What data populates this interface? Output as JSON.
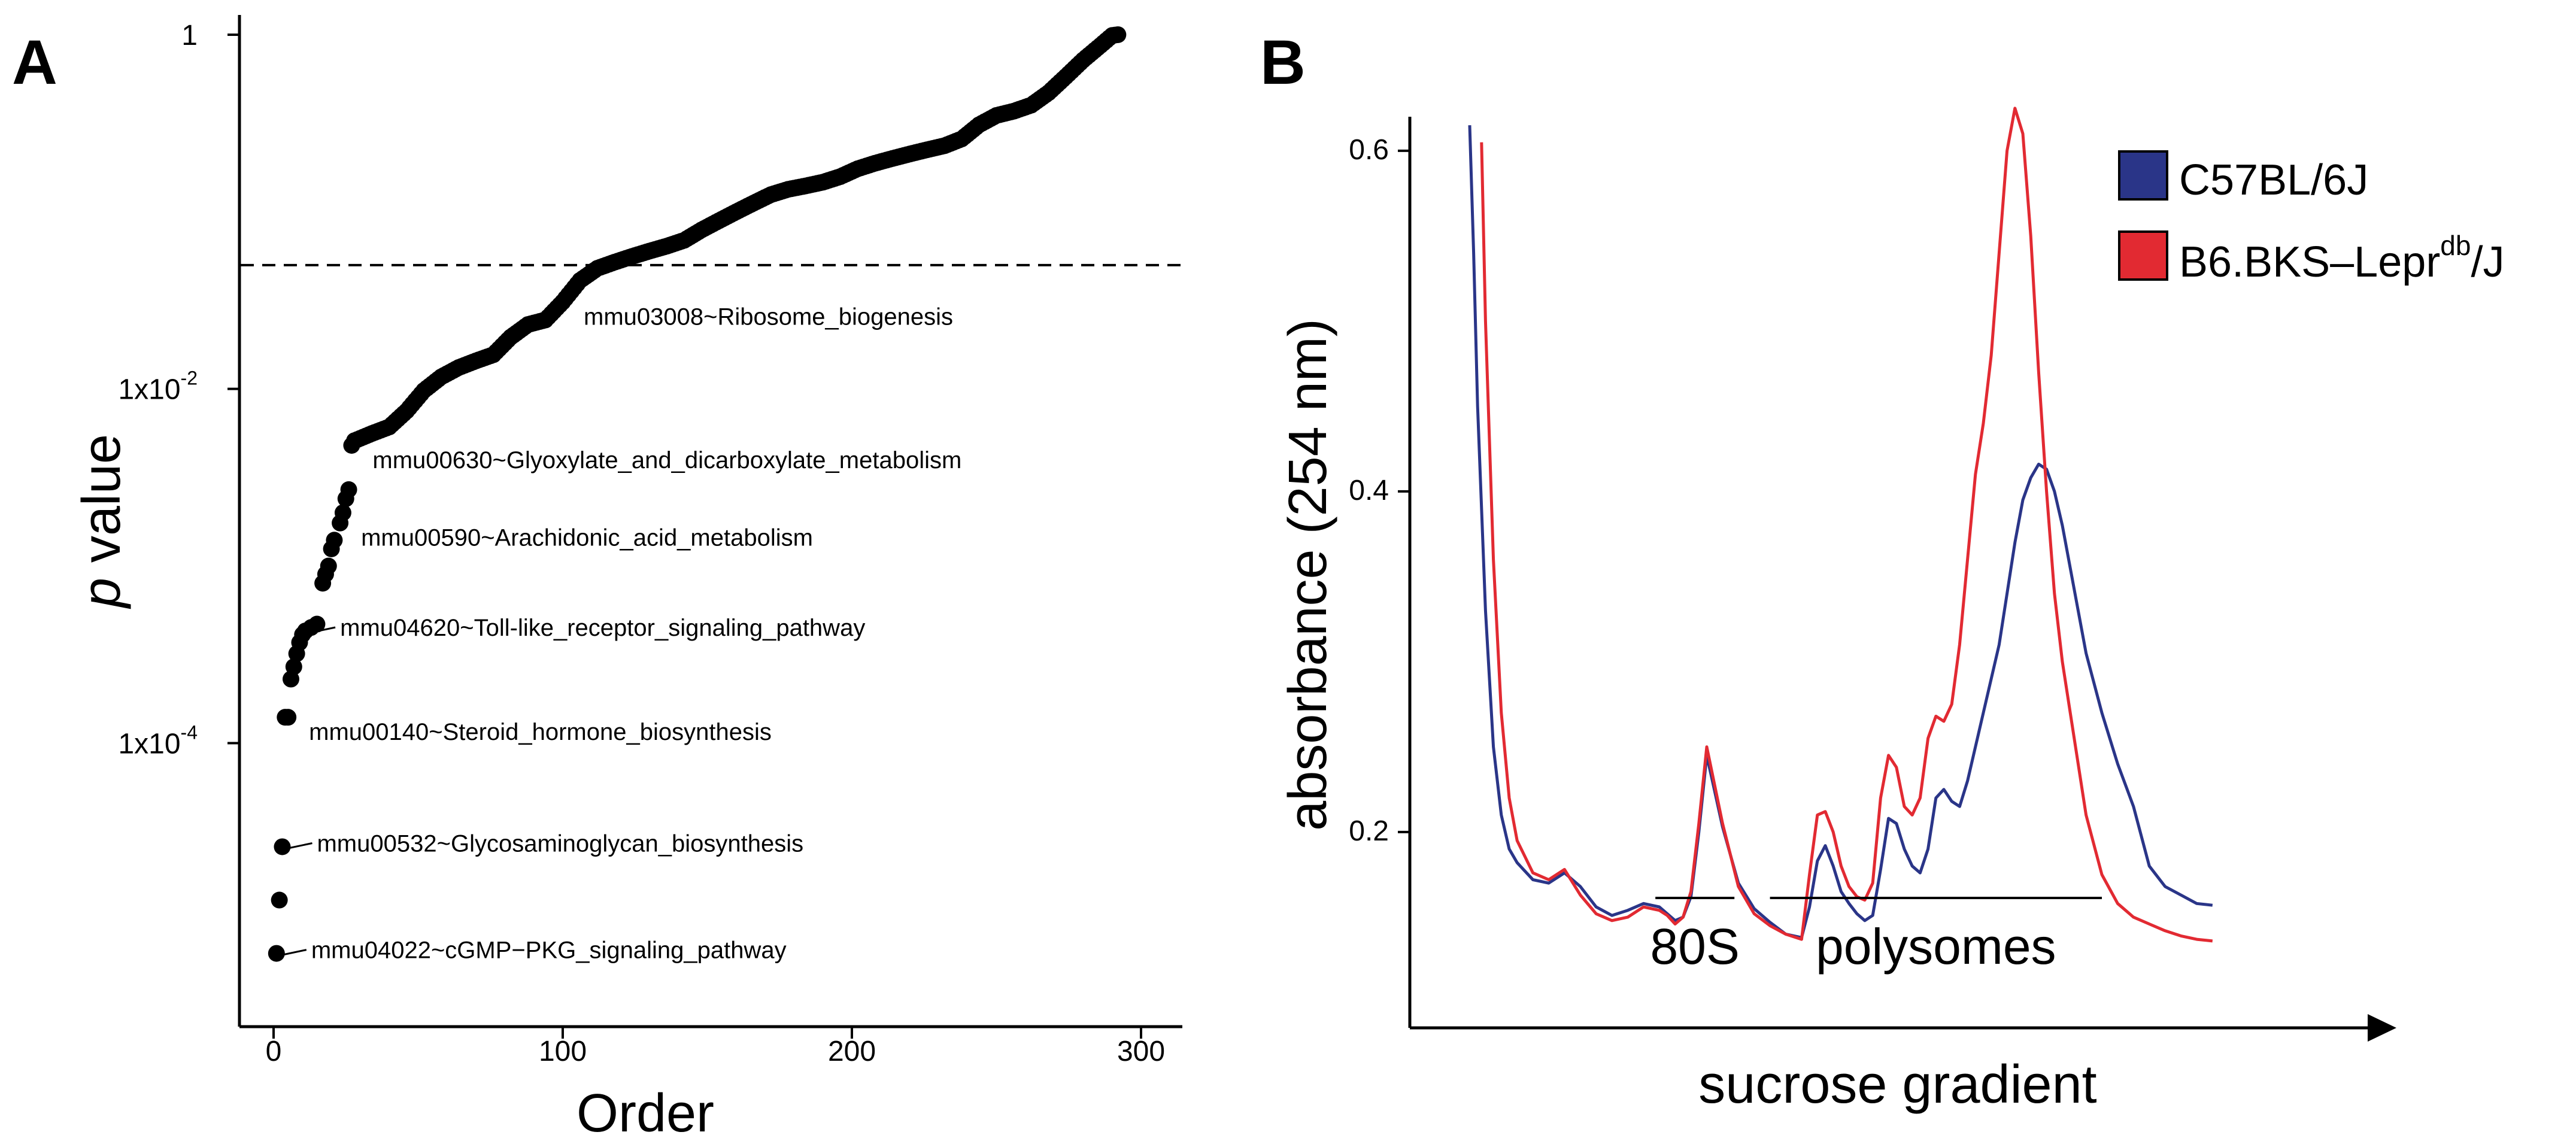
{
  "chart_data": [
    {
      "panel": "A",
      "type": "scatter",
      "xlabel": "Order",
      "ylabel_italic": "p",
      "ylabel_rest": " value",
      "y_scale": "log",
      "xlim": [
        -8,
        300
      ],
      "ylim": [
        4e-06,
        1.15
      ],
      "x_ticks": [
        0,
        100,
        200,
        300
      ],
      "y_ticks": [
        {
          "value": 1,
          "base": "1",
          "exp": ""
        },
        {
          "value": 0.01,
          "base": "1x10",
          "exp": "-2"
        },
        {
          "value": 0.0001,
          "base": "1x10",
          "exp": "-4"
        }
      ],
      "threshold": 0.05,
      "threshold_style": "dashed",
      "points": [
        [
          1,
          6.5e-06
        ],
        [
          2,
          1.3e-05
        ],
        [
          3,
          2.6e-05
        ],
        [
          4,
          0.00014
        ],
        [
          5,
          0.00014
        ],
        [
          6,
          0.00023
        ],
        [
          7,
          0.00027
        ],
        [
          8,
          0.00032
        ],
        [
          9,
          0.00037
        ],
        [
          10,
          0.00041
        ],
        [
          11,
          0.00043
        ],
        [
          13,
          0.00045
        ],
        [
          15,
          0.00047
        ],
        [
          17,
          0.0008
        ],
        [
          18,
          0.0009
        ],
        [
          19,
          0.001
        ],
        [
          20,
          0.00125
        ],
        [
          21,
          0.0014
        ],
        [
          23,
          0.00175
        ],
        [
          24,
          0.002
        ],
        [
          25,
          0.0024
        ],
        [
          26,
          0.0027
        ],
        [
          27,
          0.0048
        ],
        [
          28,
          0.0051
        ]
      ],
      "curve": [
        [
          28,
          0.0051
        ],
        [
          34,
          0.0056
        ],
        [
          40,
          0.0061
        ],
        [
          46,
          0.0075
        ],
        [
          52,
          0.0098
        ],
        [
          58,
          0.0117
        ],
        [
          64,
          0.0132
        ],
        [
          70,
          0.0144
        ],
        [
          76,
          0.0156
        ],
        [
          82,
          0.0196
        ],
        [
          88,
          0.0231
        ],
        [
          94,
          0.0245
        ],
        [
          100,
          0.031
        ],
        [
          106,
          0.041
        ],
        [
          112,
          0.048
        ],
        [
          118,
          0.052
        ],
        [
          124,
          0.056
        ],
        [
          130,
          0.06
        ],
        [
          136,
          0.064
        ],
        [
          142,
          0.069
        ],
        [
          148,
          0.079
        ],
        [
          154,
          0.089
        ],
        [
          160,
          0.1
        ],
        [
          166,
          0.112
        ],
        [
          172,
          0.125
        ],
        [
          178,
          0.134
        ],
        [
          184,
          0.14
        ],
        [
          190,
          0.147
        ],
        [
          196,
          0.158
        ],
        [
          202,
          0.175
        ],
        [
          208,
          0.188
        ],
        [
          214,
          0.2
        ],
        [
          220,
          0.212
        ],
        [
          226,
          0.224
        ],
        [
          232,
          0.236
        ],
        [
          238,
          0.258
        ],
        [
          244,
          0.31
        ],
        [
          250,
          0.35
        ],
        [
          256,
          0.37
        ],
        [
          262,
          0.4
        ],
        [
          268,
          0.47
        ],
        [
          274,
          0.58
        ],
        [
          280,
          0.72
        ],
        [
          286,
          0.87
        ],
        [
          290,
          0.99
        ],
        [
          292,
          1.0
        ]
      ],
      "annotations": [
        {
          "text": "mmu03008~Ribosome_biogenesis",
          "x": 100,
          "y": 0.031,
          "leader": false
        },
        {
          "text": "mmu00630~Glyoxylate_and_dicarboxylate_metabolism",
          "x": 27,
          "y": 0.0048,
          "leader": false
        },
        {
          "text": "mmu00590~Arachidonic_acid_metabolism",
          "x": 23,
          "y": 0.00175,
          "leader": false
        },
        {
          "text": "mmu04620~Toll-like_receptor_signaling_pathway",
          "x": 11,
          "y": 0.00043,
          "leader": true
        },
        {
          "text": "mmu00140~Steroid_hormone_biosynthesis",
          "x": 5,
          "y": 0.00014,
          "leader": false
        },
        {
          "text": "mmu00532~Glycosaminoglycan_biosynthesis",
          "x": 3,
          "y": 2.6e-05,
          "leader": true
        },
        {
          "text": "mmu04022~cGMP−PKG_signaling_pathway",
          "x": 1,
          "y": 6.5e-06,
          "leader": true
        }
      ]
    },
    {
      "panel": "B",
      "type": "line",
      "xlabel": "sucrose gradient",
      "ylabel": "absorbance (254 nm)",
      "xlim": [
        0,
        100
      ],
      "ylim": [
        0.085,
        0.62
      ],
      "y_ticks": [
        0.2,
        0.4,
        0.6
      ],
      "legend_position": "top-right",
      "series": [
        {
          "name_main": "C57BL/6J",
          "name_sup": "",
          "name_tail": "",
          "color": "#2a3588",
          "x": [
            0,
            0.5,
            1,
            2,
            3,
            4,
            5,
            6,
            8,
            10,
            12,
            14,
            16,
            18,
            20,
            22,
            24,
            25,
            26,
            27,
            28,
            29,
            30,
            32,
            34,
            36,
            38,
            40,
            42,
            43,
            44,
            45,
            46,
            47,
            48,
            49,
            50,
            51,
            52,
            53,
            54,
            55,
            56,
            57,
            58,
            59,
            60,
            61,
            62,
            63,
            64,
            65,
            66,
            67,
            68,
            69,
            70,
            71,
            72,
            73,
            74,
            75,
            76,
            77,
            78,
            80,
            82,
            84,
            86,
            88,
            90,
            92,
            94
          ],
          "y": [
            0.615,
            0.54,
            0.45,
            0.33,
            0.25,
            0.21,
            0.19,
            0.182,
            0.172,
            0.17,
            0.176,
            0.168,
            0.156,
            0.151,
            0.154,
            0.158,
            0.156,
            0.152,
            0.148,
            0.15,
            0.162,
            0.2,
            0.245,
            0.203,
            0.17,
            0.155,
            0.147,
            0.14,
            0.138,
            0.156,
            0.183,
            0.192,
            0.18,
            0.165,
            0.158,
            0.152,
            0.148,
            0.151,
            0.178,
            0.208,
            0.205,
            0.19,
            0.18,
            0.176,
            0.19,
            0.22,
            0.225,
            0.218,
            0.215,
            0.23,
            0.25,
            0.27,
            0.29,
            0.31,
            0.34,
            0.37,
            0.395,
            0.408,
            0.416,
            0.413,
            0.4,
            0.38,
            0.355,
            0.33,
            0.305,
            0.27,
            0.24,
            0.215,
            0.18,
            0.168,
            0.163,
            0.158,
            0.157
          ]
        },
        {
          "name_main": "B6.BKS–Lepr",
          "name_sup": "db",
          "name_tail": "/J",
          "color": "#e22a32",
          "x": [
            1.5,
            2,
            3,
            4,
            5,
            6,
            8,
            10,
            12,
            14,
            16,
            18,
            20,
            22,
            24,
            25,
            26,
            27,
            28,
            29,
            30,
            32,
            34,
            36,
            38,
            40,
            42,
            43,
            44,
            45,
            46,
            47,
            48,
            49,
            50,
            51,
            52,
            53,
            54,
            55,
            56,
            57,
            58,
            59,
            60,
            61,
            62,
            63,
            64,
            65,
            66,
            67,
            68,
            69,
            70,
            71,
            72,
            73,
            74,
            75,
            76,
            77,
            78,
            80,
            82,
            84,
            86,
            88,
            90,
            92,
            94
          ],
          "y": [
            0.605,
            0.5,
            0.36,
            0.27,
            0.22,
            0.195,
            0.176,
            0.172,
            0.178,
            0.163,
            0.152,
            0.148,
            0.15,
            0.156,
            0.154,
            0.151,
            0.146,
            0.15,
            0.165,
            0.205,
            0.25,
            0.205,
            0.168,
            0.152,
            0.145,
            0.14,
            0.137,
            0.175,
            0.21,
            0.212,
            0.2,
            0.18,
            0.168,
            0.162,
            0.16,
            0.17,
            0.22,
            0.245,
            0.238,
            0.215,
            0.21,
            0.22,
            0.255,
            0.268,
            0.265,
            0.275,
            0.31,
            0.36,
            0.41,
            0.44,
            0.48,
            0.54,
            0.6,
            0.625,
            0.61,
            0.55,
            0.47,
            0.4,
            0.34,
            0.3,
            0.27,
            0.24,
            0.21,
            0.175,
            0.158,
            0.15,
            0.146,
            0.142,
            0.139,
            0.137,
            0.136
          ]
        }
      ],
      "regions": [
        {
          "label": "80S",
          "x_start": 23.5,
          "x_end": 33.5
        },
        {
          "label": "polysomes",
          "x_start": 38,
          "x_end": 80
        }
      ]
    }
  ]
}
